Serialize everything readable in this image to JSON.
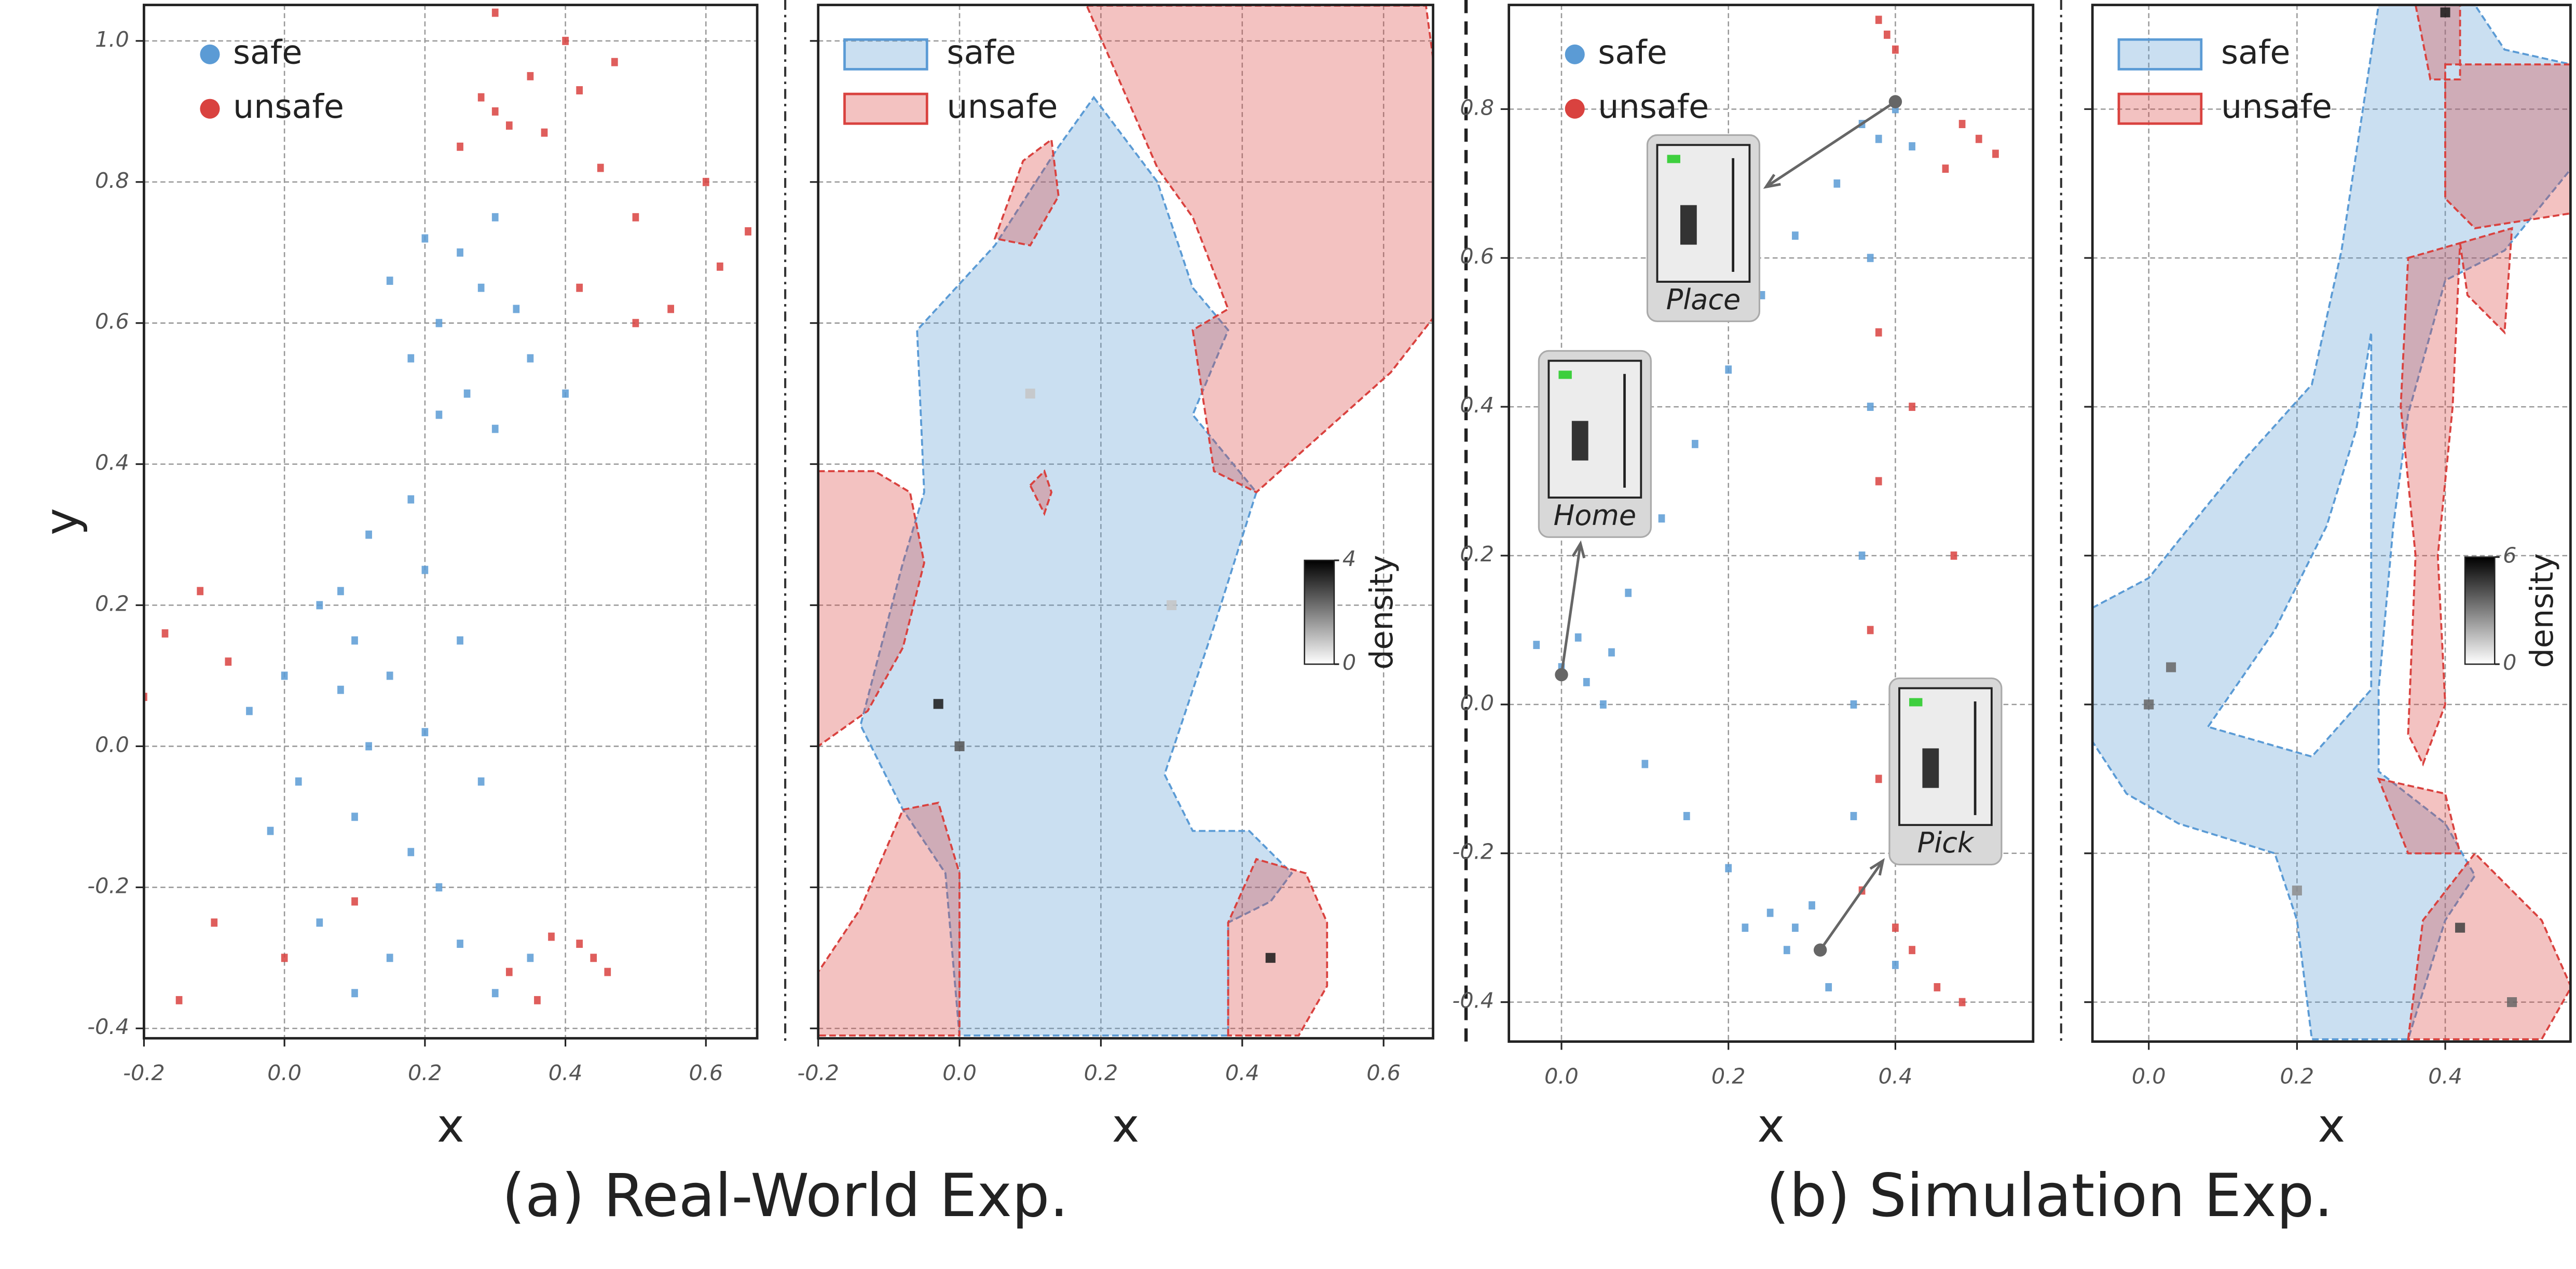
{
  "captions": [
    "(a) Real-World Exp.",
    "(b) Simulation Exp."
  ],
  "chart_data": [
    {
      "type": "scatter",
      "xlabel": "x",
      "ylabel": "y",
      "xlim": [
        -0.2,
        0.673
      ],
      "ylim": [
        -0.414,
        1.051
      ],
      "xticks": [
        -0.2,
        {
          "value": 0,
          "label": "0.0"
        },
        0.2,
        0.4,
        0.6
      ],
      "yticks": [
        -0.4,
        -0.2,
        {
          "value": 0,
          "label": "0.0"
        },
        0.2,
        0.4,
        0.6,
        0.8,
        {
          "value": 1,
          "label": "1.0"
        }
      ],
      "grid": true,
      "legend": "upper left",
      "series": [
        {
          "name": "safe",
          "color": "#5b9bd5",
          "x": [
            0.2,
            0.25,
            0.3,
            0.28,
            0.22,
            0.33,
            0.18,
            0.26,
            0.3,
            0.22,
            0.35,
            0.4,
            0.15,
            0.12,
            0.18,
            0.05,
            0.1,
            0.0,
            -0.05,
            0.08,
            0.15,
            0.2,
            0.02,
            0.1,
            0.18,
            0.22,
            0.05,
            0.15,
            0.25,
            0.1,
            0.3,
            0.12,
            -0.02,
            0.25,
            0.28,
            0.35,
            0.08,
            0.2
          ],
          "y": [
            0.72,
            0.7,
            0.75,
            0.65,
            0.6,
            0.62,
            0.55,
            0.5,
            0.45,
            0.47,
            0.55,
            0.5,
            0.66,
            0.3,
            0.35,
            0.2,
            0.15,
            0.1,
            0.05,
            0.08,
            0.1,
            0.02,
            -0.05,
            -0.1,
            -0.15,
            -0.2,
            -0.25,
            -0.3,
            -0.28,
            -0.35,
            -0.35,
            0.0,
            -0.12,
            0.15,
            -0.05,
            -0.3,
            0.22,
            0.25
          ]
        },
        {
          "name": "unsafe",
          "color": "#d9423f",
          "x": [
            0.28,
            0.3,
            0.32,
            0.25,
            0.35,
            0.4,
            0.42,
            0.37,
            0.45,
            0.5,
            0.6,
            0.66,
            0.5,
            0.42,
            0.3,
            0.47,
            0.44,
            0.46,
            0.42,
            0.38,
            0.36,
            0.32,
            -0.15,
            -0.1,
            -0.2,
            -0.17,
            -0.12,
            -0.08,
            0.0,
            0.1,
            0.55,
            0.62
          ],
          "y": [
            0.92,
            0.9,
            0.88,
            0.85,
            0.95,
            1.0,
            0.93,
            0.87,
            0.82,
            0.75,
            0.8,
            0.73,
            0.6,
            0.65,
            1.04,
            0.97,
            -0.3,
            -0.32,
            -0.28,
            -0.27,
            -0.36,
            -0.32,
            -0.36,
            -0.25,
            0.07,
            0.16,
            0.22,
            0.12,
            -0.3,
            -0.22,
            0.62,
            0.68
          ]
        }
      ]
    },
    {
      "type": "contour",
      "xlabel": "x",
      "xlim": [
        -0.2,
        0.67
      ],
      "ylim": [
        -0.414,
        1.051
      ],
      "xticks": [
        -0.2,
        {
          "value": 0,
          "label": "0.0"
        },
        0.2,
        0.4,
        0.6
      ],
      "yticks": [
        -0.4,
        -0.2,
        0,
        0.2,
        0.4,
        0.6,
        0.8,
        1
      ],
      "ytick_labels": false,
      "grid": true,
      "legend": "upper left",
      "series": [
        {
          "name": "safe",
          "color": "#5b9bd5",
          "regions": [
            {
              "x": [
                0.19,
                0.28,
                0.33,
                0.38,
                0.33,
                0.42,
                0.36,
                0.29,
                0.33,
                0.41,
                0.47,
                0.44,
                0.38,
                0.38,
                0.0,
                -0.02,
                -0.08,
                -0.14,
                -0.08,
                -0.05,
                -0.06,
                0.05,
                0.14
              ],
              "y": [
                0.92,
                0.8,
                0.65,
                0.59,
                0.47,
                0.36,
                0.17,
                -0.04,
                -0.12,
                -0.12,
                -0.18,
                -0.22,
                -0.25,
                -0.41,
                -0.41,
                -0.18,
                -0.09,
                0.03,
                0.26,
                0.36,
                0.59,
                0.71,
                0.85
              ]
            }
          ]
        },
        {
          "name": "unsafe",
          "color": "#d9423f",
          "regions": [
            {
              "x": [
                0.18,
                0.66,
                0.68,
                0.68,
                0.61,
                0.42,
                0.36,
                0.33,
                0.38,
                0.33,
                0.28
              ],
              "y": [
                1.05,
                1.05,
                0.9,
                0.62,
                0.53,
                0.36,
                0.39,
                0.59,
                0.62,
                0.75,
                0.82
              ]
            },
            {
              "x": [
                -0.2,
                -0.12,
                -0.07,
                -0.05,
                -0.08,
                -0.13,
                -0.2
              ],
              "y": [
                0.39,
                0.39,
                0.36,
                0.26,
                0.14,
                0.05,
                0.0
              ]
            },
            {
              "x": [
                -0.2,
                -0.2,
                -0.14,
                -0.08,
                -0.03,
                0.0,
                0.0
              ],
              "y": [
                -0.41,
                -0.32,
                -0.23,
                -0.09,
                -0.08,
                -0.18,
                -0.41
              ]
            },
            {
              "x": [
                0.38,
                0.38,
                0.42,
                0.49,
                0.52,
                0.52,
                0.48
              ],
              "y": [
                -0.41,
                -0.25,
                -0.16,
                -0.18,
                -0.25,
                -0.34,
                -0.41
              ]
            },
            {
              "x": [
                0.05,
                0.09,
                0.13,
                0.14,
                0.1
              ],
              "y": [
                0.72,
                0.83,
                0.86,
                0.78,
                0.71
              ]
            },
            {
              "x": [
                0.1,
                0.12,
                0.13,
                0.12
              ],
              "y": [
                0.37,
                0.39,
                0.36,
                0.33
              ]
            }
          ]
        }
      ],
      "cells": {
        "x": [
          0.44,
          -0.03,
          0.0,
          0.1,
          0.3
        ],
        "y": [
          -0.3,
          0.06,
          0.0,
          0.5,
          0.2
        ],
        "values": [
          4,
          4,
          3,
          1,
          1
        ]
      },
      "colorbar": {
        "label": "density",
        "lim": [
          0,
          4
        ],
        "ticks": [
          0,
          4
        ]
      }
    },
    {
      "type": "scatter",
      "xlabel": "x",
      "xlim": [
        -0.063,
        0.565
      ],
      "ylim": [
        -0.453,
        0.94
      ],
      "xticks": [
        {
          "value": 0,
          "label": "0.0"
        },
        0.2,
        0.4
      ],
      "yticks": [
        -0.4,
        -0.2,
        {
          "value": 0,
          "label": "0.0"
        },
        0.2,
        0.4,
        0.6,
        0.8
      ],
      "grid": true,
      "legend": "upper left",
      "series": [
        {
          "name": "safe",
          "color": "#5b9bd5",
          "x": [
            -0.03,
            0.0,
            0.03,
            0.05,
            0.06,
            0.02,
            0.08,
            0.12,
            0.16,
            0.2,
            0.24,
            0.28,
            0.33,
            0.38,
            0.4,
            0.42,
            0.36,
            0.37,
            0.37,
            0.36,
            0.35,
            0.35,
            0.1,
            0.15,
            0.2,
            0.25,
            0.28,
            0.3,
            0.27,
            0.32,
            0.22,
            0.4
          ],
          "y": [
            0.08,
            0.05,
            0.03,
            0.0,
            0.07,
            0.09,
            0.15,
            0.25,
            0.35,
            0.45,
            0.55,
            0.63,
            0.7,
            0.76,
            0.8,
            0.75,
            0.78,
            0.6,
            0.4,
            0.2,
            0.0,
            -0.15,
            -0.08,
            -0.15,
            -0.22,
            -0.28,
            -0.3,
            -0.27,
            -0.33,
            -0.38,
            -0.3,
            -0.35
          ]
        },
        {
          "name": "unsafe",
          "color": "#d9423f",
          "x": [
            0.39,
            0.4,
            0.38,
            0.48,
            0.5,
            0.52,
            0.46,
            0.38,
            0.38,
            0.37,
            0.38,
            0.36,
            0.42,
            0.45,
            0.48,
            0.4,
            0.47,
            0.42
          ],
          "y": [
            0.9,
            0.88,
            0.92,
            0.78,
            0.76,
            0.74,
            0.72,
            0.5,
            0.3,
            0.1,
            -0.1,
            -0.25,
            -0.33,
            -0.38,
            -0.4,
            -0.3,
            0.2,
            0.4
          ]
        }
      ],
      "annotations": [
        {
          "text": "Place",
          "xy": [
            0.4,
            0.81
          ],
          "xytext": [
            0.17,
            0.64
          ]
        },
        {
          "text": "Home",
          "xy": [
            0.0,
            0.04
          ],
          "xytext": [
            0.04,
            0.35
          ]
        },
        {
          "text": "Pick",
          "xy": [
            0.31,
            -0.33
          ],
          "xytext": [
            0.46,
            -0.09
          ]
        }
      ]
    },
    {
      "type": "contour",
      "xlabel": "x",
      "xlim": [
        -0.076,
        0.569
      ],
      "ylim": [
        -0.453,
        0.94
      ],
      "xticks": [
        {
          "value": 0,
          "label": "0.0"
        },
        0.2,
        0.4
      ],
      "yticks": [
        -0.4,
        -0.2,
        0,
        0.2,
        0.4,
        0.6,
        0.8
      ],
      "ytick_labels": false,
      "grid": true,
      "legend": "upper left",
      "series": [
        {
          "name": "safe",
          "color": "#5b9bd5",
          "regions": [
            {
              "x": [
                0.31,
                0.44,
                0.48,
                0.57,
                0.57,
                0.48,
                0.4,
                0.35,
                0.33,
                0.31,
                0.31,
                0.4,
                0.44,
                0.4,
                0.35,
                0.22,
                0.2,
                0.17,
                0.04,
                -0.03,
                -0.076,
                -0.076,
                0.0,
                0.04,
                0.13,
                0.22,
                0.26
              ],
              "y": [
                0.94,
                0.94,
                0.88,
                0.86,
                0.72,
                0.61,
                0.57,
                0.39,
                0.24,
                0.02,
                -0.09,
                -0.16,
                -0.23,
                -0.29,
                -0.45,
                -0.45,
                -0.29,
                -0.2,
                -0.16,
                -0.12,
                -0.05,
                0.13,
                0.17,
                0.22,
                0.33,
                0.43,
                0.61
              ]
            },
            {
              "x": [
                0.08,
                0.17,
                0.24,
                0.28,
                0.3,
                0.3,
                0.22
              ],
              "y": [
                -0.03,
                0.1,
                0.24,
                0.37,
                0.5,
                0.02,
                -0.07
              ]
            }
          ]
        },
        {
          "name": "unsafe",
          "color": "#d9423f",
          "regions": [
            {
              "x": [
                0.35,
                0.42,
                0.41,
                0.39,
                0.4,
                0.37,
                0.35,
                0.36,
                0.34
              ],
              "y": [
                0.6,
                0.62,
                0.4,
                0.2,
                0.0,
                -0.08,
                -0.04,
                0.2,
                0.4
              ]
            },
            {
              "x": [
                0.4,
                0.57,
                0.57,
                0.44,
                0.4
              ],
              "y": [
                0.86,
                0.86,
                0.66,
                0.64,
                0.68
              ]
            },
            {
              "x": [
                0.36,
                0.42,
                0.42,
                0.38
              ],
              "y": [
                0.94,
                0.94,
                0.84,
                0.84
              ]
            },
            {
              "x": [
                0.42,
                0.49,
                0.48,
                0.43
              ],
              "y": [
                0.62,
                0.64,
                0.5,
                0.55
              ]
            },
            {
              "x": [
                0.35,
                0.37,
                0.44,
                0.53,
                0.57,
                0.53
              ],
              "y": [
                -0.45,
                -0.29,
                -0.2,
                -0.29,
                -0.38,
                -0.45
              ]
            },
            {
              "x": [
                0.31,
                0.4,
                0.42,
                0.35
              ],
              "y": [
                -0.1,
                -0.12,
                -0.2,
                -0.2
              ]
            }
          ]
        }
      ],
      "cells": {
        "x": [
          0.4,
          0.03,
          0.0,
          0.49,
          0.42,
          0.2
        ],
        "y": [
          0.93,
          0.05,
          0.0,
          -0.4,
          -0.3,
          -0.25
        ],
        "values": [
          6,
          4,
          4,
          4,
          5,
          3
        ]
      },
      "colorbar": {
        "label": "density",
        "lim": [
          0,
          6
        ],
        "ticks": [
          0,
          6
        ]
      }
    }
  ]
}
